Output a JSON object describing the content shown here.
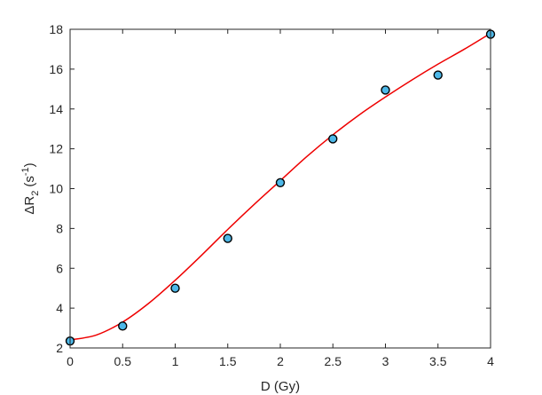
{
  "chart_data": {
    "type": "scatter",
    "title": "",
    "xlabel": "D (Gy)",
    "ylabel": {
      "delta": "Δ",
      "R": "R",
      "sub": "2",
      "unit_open": "(s",
      "sup": "-1",
      "unit_close": ")"
    },
    "xlim": [
      0,
      4
    ],
    "ylim": [
      2,
      18
    ],
    "xticks": [
      0,
      0.5,
      1,
      1.5,
      2,
      2.5,
      3,
      3.5,
      4
    ],
    "xtick_labels": [
      "0",
      "0.5",
      "1",
      "1.5",
      "2",
      "2.5",
      "3",
      "3.5",
      "4"
    ],
    "yticks": [
      2,
      4,
      6,
      8,
      10,
      12,
      14,
      16,
      18
    ],
    "ytick_labels": [
      "2",
      "4",
      "6",
      "8",
      "10",
      "12",
      "14",
      "16",
      "18"
    ],
    "grid": false,
    "series": [
      {
        "kind": "points",
        "marker": "circle",
        "color": "#000000",
        "fill": "#4db8e8",
        "x": [
          0,
          0.5,
          1,
          1.5,
          2,
          2.5,
          3,
          3.5,
          4
        ],
        "y": [
          2.35,
          3.1,
          5.0,
          7.5,
          10.3,
          12.5,
          14.95,
          15.7,
          17.75
        ],
        "y_error": [
          0.12,
          0.12,
          0.12,
          0.12,
          0.12,
          0.12,
          0.12,
          0.12,
          0.12
        ]
      },
      {
        "kind": "fit-curve",
        "color": "#ee0000",
        "x": [
          0,
          0.25,
          0.5,
          0.75,
          1,
          1.25,
          1.5,
          1.75,
          2,
          2.25,
          2.5,
          2.75,
          3,
          3.25,
          3.5,
          3.75,
          4
        ],
        "y": [
          2.4,
          2.65,
          3.3,
          4.25,
          5.4,
          6.65,
          7.95,
          9.2,
          10.4,
          11.6,
          12.7,
          13.7,
          14.6,
          15.45,
          16.25,
          17.0,
          17.8
        ]
      }
    ]
  }
}
